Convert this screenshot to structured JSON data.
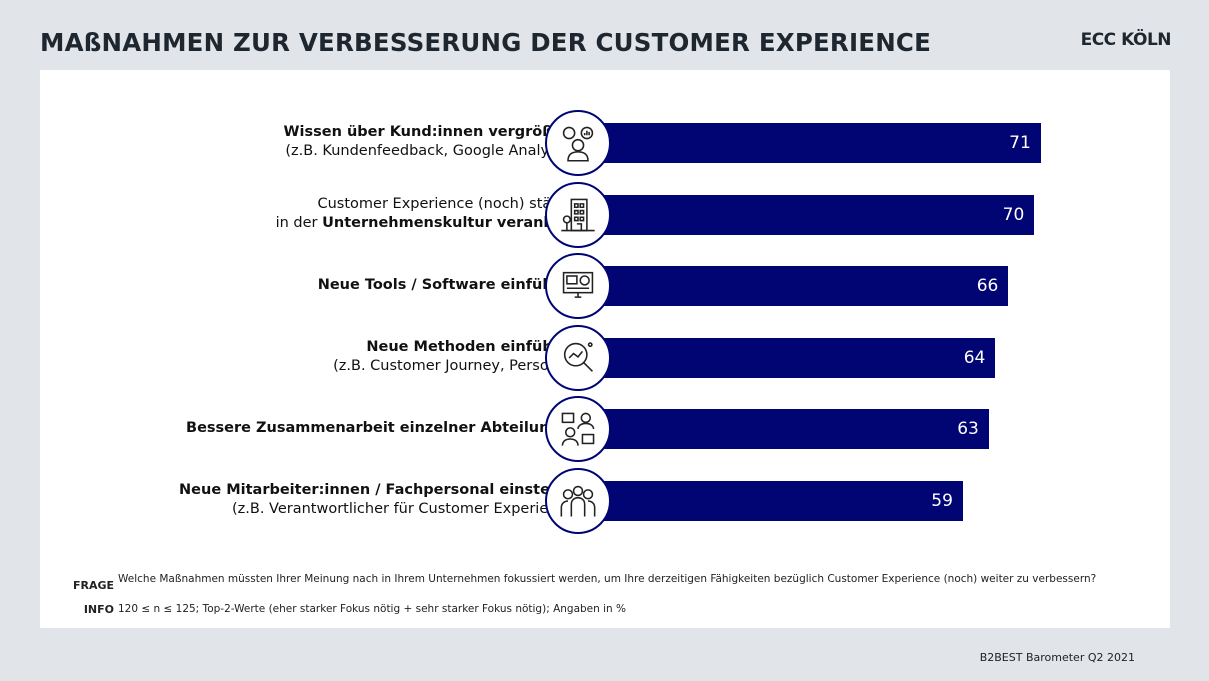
{
  "header": {
    "title": "MAßNAHMEN ZUR VERBESSERUNG DER CUSTOMER EXPERIENCE",
    "brand": "ECC KÖLN"
  },
  "chart_data": {
    "type": "bar",
    "orientation": "horizontal",
    "bar_color": "#000573",
    "categories": [
      {
        "lines": [
          [
            {
              "t": "Wissen über Kund:innen vergrößern",
              "b": true
            }
          ],
          [
            {
              "t": "(z.B. Kundenfeedback, Google Analytics)",
              "b": false
            }
          ]
        ],
        "icon": "person-gear-chart-icon"
      },
      {
        "lines": [
          [
            {
              "t": "Customer Experience (noch) stärker",
              "b": false
            }
          ],
          [
            {
              "t": "in der ",
              "b": false
            },
            {
              "t": "Unternehmenskultur verankern",
              "b": true
            }
          ]
        ],
        "icon": "office-building-icon"
      },
      {
        "lines": [
          [
            {
              "t": "Neue Tools / Software einführen",
              "b": true
            }
          ]
        ],
        "icon": "monitor-software-icon"
      },
      {
        "lines": [
          [
            {
              "t": "Neue Methoden einführen",
              "b": true
            }
          ],
          [
            {
              "t": "(z.B. Customer Journey, Personas)",
              "b": false
            }
          ]
        ],
        "icon": "magnifier-journey-icon"
      },
      {
        "lines": [
          [
            {
              "t": "Bessere Zusammenarbeit einzelner Abteilungen",
              "b": true
            }
          ]
        ],
        "icon": "team-collaboration-icon"
      },
      {
        "lines": [
          [
            {
              "t": "Neue Mitarbeiter:innen / Fachpersonal einstellen",
              "b": true
            }
          ],
          [
            {
              "t": "(z.B. Verantwortlicher für Customer Experience)",
              "b": false
            }
          ]
        ],
        "icon": "group-people-icon"
      }
    ],
    "values": [
      71,
      70,
      66,
      64,
      63,
      59
    ],
    "xlim": [
      0,
      100
    ]
  },
  "footer": {
    "frage_label": "FRAGE",
    "frage_text": "Welche Maßnahmen müssten Ihrer Meinung nach in Ihrem Unternehmen fokussiert werden, um Ihre derzeitigen Fähigkeiten bezüglich Customer Experience (noch) weiter zu verbessern?",
    "info_label": "INFO",
    "info_text": "120 ≤ n ≤ 125; Top-2-Werte (eher starker Fokus nötig + sehr starker Fokus nötig); Angaben in %",
    "source": "B2BEST Barometer Q2 2021"
  }
}
